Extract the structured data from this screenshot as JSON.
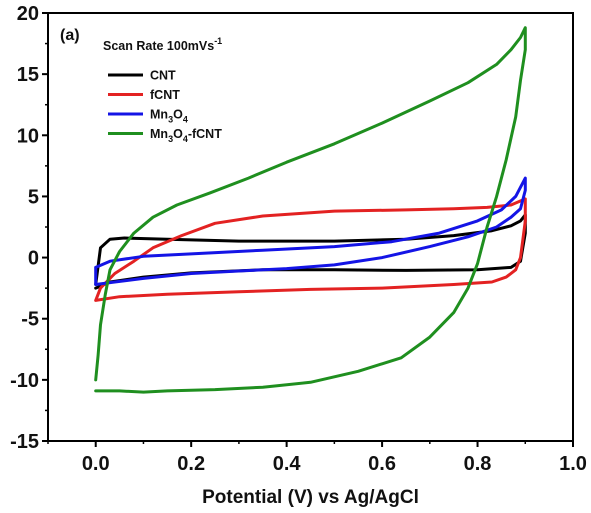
{
  "chart_data": {
    "type": "line",
    "panel_label": "(a)",
    "annotation": {
      "prefix": "Scan Rate 100mVs",
      "superscript": "-1"
    },
    "xlabel": "Potential (V) vs Ag/AgCl",
    "ylabel": "",
    "xlim": [
      -0.1,
      1.0
    ],
    "ylim": [
      -15,
      20
    ],
    "x_ticks": [
      0.0,
      0.2,
      0.4,
      0.6,
      0.8,
      1.0
    ],
    "x_tick_labels": [
      "0.0",
      "0.2",
      "0.4",
      "0.6",
      "0.8",
      "1.0"
    ],
    "y_ticks": [
      -15,
      -10,
      -5,
      0,
      5,
      10,
      15,
      20
    ],
    "y_tick_labels": [
      "-15",
      "-10",
      "-5",
      "0",
      "5",
      "10",
      "15",
      "20"
    ],
    "grid": false,
    "legend_position": "top-left",
    "series": [
      {
        "name": "CNT",
        "label_parts": [
          [
            "CNT",
            false
          ]
        ],
        "color": "#000000",
        "points": [
          [
            0.0,
            -2.2
          ],
          [
            0.01,
            0.8
          ],
          [
            0.03,
            1.5
          ],
          [
            0.06,
            1.6
          ],
          [
            0.15,
            1.5
          ],
          [
            0.3,
            1.35
          ],
          [
            0.5,
            1.35
          ],
          [
            0.65,
            1.5
          ],
          [
            0.75,
            1.8
          ],
          [
            0.83,
            2.2
          ],
          [
            0.87,
            2.6
          ],
          [
            0.89,
            3.0
          ],
          [
            0.9,
            3.5
          ],
          [
            0.9,
            2.0
          ],
          [
            0.89,
            -0.3
          ],
          [
            0.87,
            -0.8
          ],
          [
            0.8,
            -1.0
          ],
          [
            0.65,
            -1.05
          ],
          [
            0.5,
            -1.0
          ],
          [
            0.35,
            -1.0
          ],
          [
            0.2,
            -1.25
          ],
          [
            0.1,
            -1.6
          ],
          [
            0.03,
            -2.0
          ],
          [
            0.0,
            -2.5
          ]
        ]
      },
      {
        "name": "fCNT",
        "label_parts": [
          [
            "fCNT",
            false
          ]
        ],
        "color": "#e32222",
        "points": [
          [
            0.0,
            -3.5
          ],
          [
            0.01,
            -2.5
          ],
          [
            0.04,
            -1.3
          ],
          [
            0.08,
            -0.3
          ],
          [
            0.12,
            0.8
          ],
          [
            0.18,
            1.8
          ],
          [
            0.25,
            2.8
          ],
          [
            0.35,
            3.4
          ],
          [
            0.5,
            3.8
          ],
          [
            0.65,
            3.9
          ],
          [
            0.75,
            4.0
          ],
          [
            0.82,
            4.1
          ],
          [
            0.87,
            4.3
          ],
          [
            0.9,
            4.8
          ],
          [
            0.9,
            3.0
          ],
          [
            0.89,
            0.0
          ],
          [
            0.88,
            -1.0
          ],
          [
            0.86,
            -1.6
          ],
          [
            0.83,
            -2.0
          ],
          [
            0.75,
            -2.2
          ],
          [
            0.6,
            -2.5
          ],
          [
            0.45,
            -2.6
          ],
          [
            0.3,
            -2.8
          ],
          [
            0.15,
            -3.0
          ],
          [
            0.05,
            -3.2
          ],
          [
            0.0,
            -3.5
          ]
        ]
      },
      {
        "name": "Mn3O4",
        "label_parts": [
          [
            "Mn",
            false
          ],
          [
            "3",
            true
          ],
          [
            "O",
            false
          ],
          [
            "4",
            true
          ]
        ],
        "color": "#1414e6",
        "points": [
          [
            0.0,
            -0.8
          ],
          [
            0.03,
            -0.3
          ],
          [
            0.1,
            0.1
          ],
          [
            0.2,
            0.3
          ],
          [
            0.35,
            0.6
          ],
          [
            0.5,
            0.9
          ],
          [
            0.62,
            1.3
          ],
          [
            0.72,
            2.0
          ],
          [
            0.8,
            3.0
          ],
          [
            0.85,
            3.9
          ],
          [
            0.88,
            5.0
          ],
          [
            0.9,
            6.5
          ],
          [
            0.9,
            5.5
          ],
          [
            0.89,
            4.0
          ],
          [
            0.87,
            3.3
          ],
          [
            0.84,
            2.5
          ],
          [
            0.78,
            1.7
          ],
          [
            0.7,
            0.9
          ],
          [
            0.6,
            0.0
          ],
          [
            0.5,
            -0.6
          ],
          [
            0.4,
            -0.9
          ],
          [
            0.3,
            -1.1
          ],
          [
            0.2,
            -1.3
          ],
          [
            0.1,
            -1.7
          ],
          [
            0.04,
            -2.0
          ],
          [
            0.0,
            -2.2
          ],
          [
            0.0,
            -0.8
          ]
        ]
      },
      {
        "name": "Mn3O4-fCNT",
        "label_parts": [
          [
            "Mn",
            false
          ],
          [
            "3",
            true
          ],
          [
            "O",
            false
          ],
          [
            "4",
            true
          ],
          [
            "-fCNT",
            false
          ]
        ],
        "color": "#1f8f1f",
        "points": [
          [
            0.0,
            -10.0
          ],
          [
            0.005,
            -8.0
          ],
          [
            0.01,
            -5.5
          ],
          [
            0.02,
            -3.0
          ],
          [
            0.03,
            -1.0
          ],
          [
            0.05,
            0.5
          ],
          [
            0.08,
            2.0
          ],
          [
            0.12,
            3.3
          ],
          [
            0.17,
            4.3
          ],
          [
            0.24,
            5.3
          ],
          [
            0.32,
            6.5
          ],
          [
            0.4,
            7.8
          ],
          [
            0.5,
            9.3
          ],
          [
            0.6,
            11.0
          ],
          [
            0.7,
            12.8
          ],
          [
            0.78,
            14.3
          ],
          [
            0.84,
            15.8
          ],
          [
            0.87,
            17.0
          ],
          [
            0.89,
            18.0
          ],
          [
            0.9,
            18.8
          ],
          [
            0.9,
            17.0
          ],
          [
            0.89,
            14.5
          ],
          [
            0.88,
            11.5
          ],
          [
            0.86,
            8.0
          ],
          [
            0.84,
            5.0
          ],
          [
            0.82,
            2.5
          ],
          [
            0.8,
            -0.5
          ],
          [
            0.78,
            -2.5
          ],
          [
            0.75,
            -4.5
          ],
          [
            0.7,
            -6.5
          ],
          [
            0.64,
            -8.2
          ],
          [
            0.55,
            -9.3
          ],
          [
            0.45,
            -10.2
          ],
          [
            0.35,
            -10.6
          ],
          [
            0.25,
            -10.8
          ],
          [
            0.15,
            -10.9
          ],
          [
            0.1,
            -11.0
          ],
          [
            0.05,
            -10.9
          ],
          [
            0.0,
            -10.9
          ]
        ]
      }
    ]
  }
}
